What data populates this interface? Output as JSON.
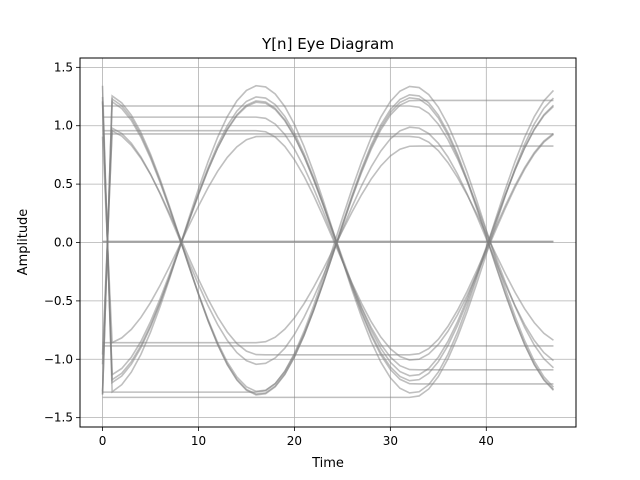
{
  "chart_data": {
    "type": "line",
    "title": "Y[n] Eye Diagram",
    "xlabel": "Time",
    "ylabel": "Amplitude",
    "xlim": [
      -2.35,
      49.35
    ],
    "ylim": [
      -1.58,
      1.58
    ],
    "xticks": [
      0,
      10,
      20,
      30,
      40
    ],
    "yticks": [
      -1.5,
      -1.0,
      -0.5,
      0.0,
      0.5,
      1.0,
      1.5
    ],
    "xtick_labels": [
      "0",
      "10",
      "20",
      "30",
      "40"
    ],
    "ytick_labels": [
      "−1.5",
      "−1.0",
      "−0.5",
      "0.0",
      "0.5",
      "1.0",
      "1.5"
    ],
    "grid": true,
    "trace_color": "#808080",
    "symbol_period": 16,
    "crossings": [
      8.3,
      24.3,
      40.3
    ],
    "sample_range": [
      0,
      47
    ],
    "symbol_levels": [
      [
        -1,
        1,
        -1,
        1
      ],
      [
        1,
        -1,
        1,
        -1
      ],
      [
        1,
        1,
        1,
        1
      ],
      [
        -1,
        -1,
        -1,
        -1
      ],
      [
        1,
        -1,
        1,
        -1
      ],
      [
        -1,
        1,
        -1,
        1
      ],
      [
        0,
        0,
        0,
        0
      ],
      [
        1,
        -1,
        1,
        -1
      ],
      [
        -1,
        1,
        -1,
        1
      ],
      [
        1,
        1,
        -1,
        -1
      ],
      [
        -1,
        -1,
        1,
        1
      ],
      [
        1,
        1,
        1,
        -1
      ],
      [
        -1,
        -1,
        -1,
        1
      ],
      [
        1,
        -1,
        -1,
        1
      ],
      [
        -1,
        1,
        1,
        -1
      ],
      [
        1,
        -1,
        1,
        1
      ],
      [
        -1,
        1,
        -1,
        -1
      ],
      [
        0,
        0,
        0,
        0
      ],
      [
        1,
        1,
        -1,
        1
      ],
      [
        -1,
        -1,
        1,
        -1
      ]
    ]
  }
}
